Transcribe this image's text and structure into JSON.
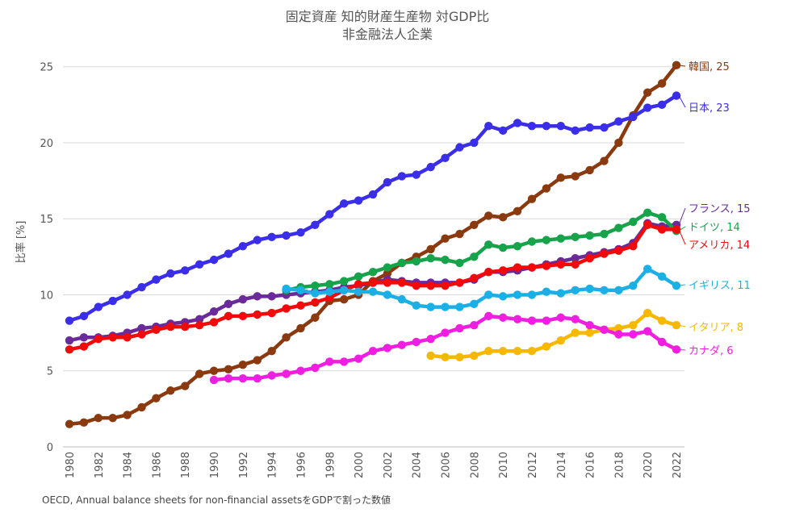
{
  "chart_data": {
    "type": "line",
    "title": "固定資産 知的財産生産物 対GDP比",
    "subtitle": "非金融法人企業",
    "ylabel": "比率 [%]",
    "xlabel": "",
    "ylim": [
      0,
      27
    ],
    "xlim": [
      1980,
      2022
    ],
    "y_ticks": [
      0,
      5,
      10,
      15,
      20,
      25
    ],
    "x_ticks": [
      1980,
      1982,
      1984,
      1986,
      1988,
      1990,
      1992,
      1994,
      1996,
      1998,
      2000,
      2002,
      2004,
      2006,
      2008,
      2010,
      2012,
      2014,
      2016,
      2018,
      2020,
      2022
    ],
    "grid": true,
    "legend": "end-labels",
    "source": "OECD, Annual balance sheets for non-financial assetsをGDPで割った数値",
    "series": [
      {
        "key": "korea",
        "label": "韓国, 25",
        "color": "#8b3a0f",
        "start": 1980,
        "values": [
          1.5,
          1.6,
          1.9,
          1.9,
          2.1,
          2.6,
          3.2,
          3.7,
          4.0,
          4.8,
          5.0,
          5.1,
          5.4,
          5.7,
          6.3,
          7.2,
          7.8,
          8.5,
          9.6,
          9.7,
          10.0,
          10.9,
          11.4,
          12.1,
          12.5,
          13.0,
          13.7,
          14.0,
          14.6,
          15.2,
          15.1,
          15.5,
          16.3,
          17.0,
          17.7,
          17.8,
          18.2,
          18.8,
          20.0,
          21.8,
          23.3,
          23.9,
          25.1
        ]
      },
      {
        "key": "japan",
        "label": "日本, 23",
        "color": "#3a2ee8",
        "start": 1980,
        "values": [
          8.3,
          8.6,
          9.2,
          9.6,
          10.0,
          10.5,
          11.0,
          11.4,
          11.6,
          12.0,
          12.3,
          12.7,
          13.2,
          13.6,
          13.8,
          13.9,
          14.1,
          14.6,
          15.3,
          16.0,
          16.2,
          16.6,
          17.4,
          17.8,
          17.9,
          18.4,
          19.0,
          19.7,
          20.0,
          21.1,
          20.8,
          21.3,
          21.1,
          21.1,
          21.1,
          20.8,
          21.0,
          21.0,
          21.4,
          21.7,
          22.3,
          22.5,
          23.1
        ]
      },
      {
        "key": "france",
        "label": "フランス, 15",
        "color": "#6a2a9a",
        "start": 1980,
        "values": [
          7.0,
          7.2,
          7.2,
          7.3,
          7.5,
          7.8,
          7.9,
          8.1,
          8.2,
          8.4,
          8.9,
          9.4,
          9.7,
          9.9,
          9.9,
          10.0,
          10.1,
          10.2,
          10.3,
          10.5,
          10.6,
          10.8,
          11.0,
          10.9,
          10.8,
          10.8,
          10.8,
          10.8,
          11.0,
          11.5,
          11.5,
          11.6,
          11.8,
          12.0,
          12.2,
          12.4,
          12.6,
          12.8,
          13.0,
          13.4,
          14.7,
          14.5,
          14.6
        ]
      },
      {
        "key": "germany",
        "label": "ドイツ, 14",
        "color": "#17a34a",
        "start": 1995,
        "values": [
          10.3,
          10.5,
          10.6,
          10.7,
          10.9,
          11.2,
          11.5,
          11.8,
          12.1,
          12.2,
          12.4,
          12.3,
          12.1,
          12.5,
          13.3,
          13.1,
          13.2,
          13.5,
          13.6,
          13.7,
          13.8,
          13.9,
          14.0,
          14.4,
          14.8,
          15.4,
          15.1,
          14.2
        ]
      },
      {
        "key": "usa",
        "label": "アメリカ, 14",
        "color": "#f20a0a",
        "start": 1980,
        "values": [
          6.4,
          6.6,
          7.1,
          7.2,
          7.2,
          7.4,
          7.7,
          7.9,
          7.9,
          8.0,
          8.2,
          8.6,
          8.6,
          8.7,
          8.8,
          9.1,
          9.3,
          9.5,
          9.8,
          10.3,
          10.7,
          10.8,
          10.8,
          10.8,
          10.6,
          10.6,
          10.6,
          10.8,
          11.1,
          11.5,
          11.6,
          11.8,
          11.8,
          11.9,
          12.0,
          12.0,
          12.4,
          12.7,
          12.9,
          13.2,
          14.6,
          14.3,
          14.3
        ]
      },
      {
        "key": "uk",
        "label": "イギリス, 11",
        "color": "#1ab0e6",
        "start": 1995,
        "values": [
          10.4,
          10.3,
          10.1,
          10.2,
          10.3,
          10.2,
          10.2,
          10.0,
          9.7,
          9.3,
          9.2,
          9.2,
          9.2,
          9.4,
          10.0,
          9.9,
          10.0,
          10.0,
          10.2,
          10.1,
          10.3,
          10.4,
          10.3,
          10.3,
          10.6,
          11.7,
          11.2,
          10.6
        ]
      },
      {
        "key": "italy",
        "label": "イタリア, 8",
        "color": "#f6b800",
        "start": 2005,
        "values": [
          6.0,
          5.9,
          5.9,
          6.0,
          6.3,
          6.3,
          6.3,
          6.3,
          6.6,
          7.0,
          7.5,
          7.5,
          7.7,
          7.8,
          8.0,
          8.8,
          8.3,
          8.0
        ]
      },
      {
        "key": "canada",
        "label": "カナダ, 6",
        "color": "#f01ee0",
        "start": 1990,
        "values": [
          4.4,
          4.5,
          4.5,
          4.5,
          4.7,
          4.8,
          5.0,
          5.2,
          5.6,
          5.6,
          5.8,
          6.3,
          6.5,
          6.7,
          6.9,
          7.1,
          7.5,
          7.8,
          8.0,
          8.6,
          8.5,
          8.4,
          8.3,
          8.3,
          8.5,
          8.4,
          8.0,
          7.7,
          7.4,
          7.4,
          7.6,
          6.9,
          6.4
        ]
      }
    ]
  }
}
